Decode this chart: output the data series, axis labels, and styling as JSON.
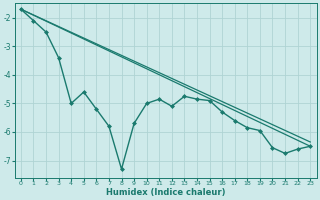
{
  "xlabel": "Humidex (Indice chaleur)",
  "ylabel": "",
  "background_color": "#ceeaea",
  "grid_color": "#afd4d4",
  "line_color": "#1a7a6e",
  "xlim": [
    -0.5,
    23.5
  ],
  "ylim": [
    -7.6,
    -1.5
  ],
  "yticks": [
    -7,
    -6,
    -5,
    -4,
    -3,
    -2
  ],
  "xticks": [
    0,
    1,
    2,
    3,
    4,
    5,
    6,
    7,
    8,
    9,
    10,
    11,
    12,
    13,
    14,
    15,
    16,
    17,
    18,
    19,
    20,
    21,
    22,
    23
  ],
  "series": [
    {
      "x": [
        0,
        1,
        2,
        3,
        4,
        5,
        6,
        7,
        8,
        9,
        10,
        11,
        12,
        13,
        14,
        15,
        16,
        17,
        18,
        19,
        20,
        21,
        22,
        23
      ],
      "y": [
        -1.7,
        -2.1,
        -2.5,
        -3.4,
        -5.0,
        -4.6,
        -5.2,
        -5.8,
        -7.3,
        -5.7,
        -5.0,
        -4.85,
        -5.1,
        -4.75,
        -4.85,
        -4.9,
        -5.3,
        -5.6,
        -5.85,
        -5.95,
        -6.55,
        -6.75,
        -6.6,
        -6.5
      ],
      "marker": "D",
      "linewidth": 1.0,
      "markersize": 2.0
    },
    {
      "x": [
        0,
        23
      ],
      "y": [
        -1.7,
        -6.5
      ],
      "marker": null,
      "linewidth": 0.9
    },
    {
      "x": [
        0,
        23
      ],
      "y": [
        -1.7,
        -6.35
      ],
      "marker": null,
      "linewidth": 0.9
    }
  ]
}
